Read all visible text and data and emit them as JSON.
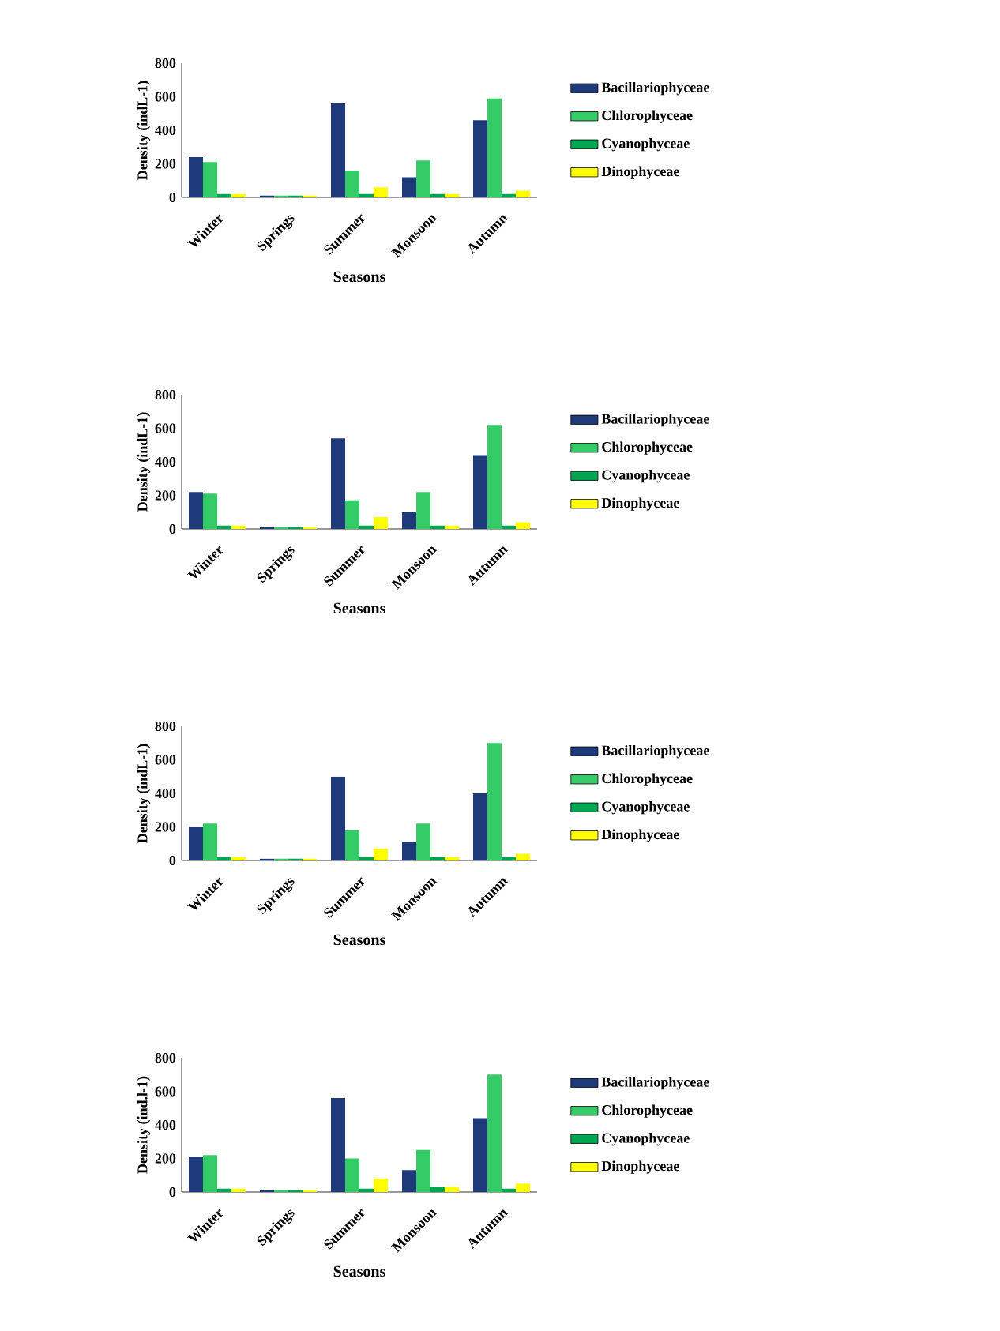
{
  "chart_data": [
    {
      "type": "bar",
      "categories": [
        "Winter",
        "Springs",
        "Summer",
        "Monsoon",
        "Autumn"
      ],
      "xlabel": "Seasons",
      "ylabel": "Density (indL-1)",
      "ylim": [
        0,
        800
      ],
      "yticks": [
        0,
        200,
        400,
        600,
        800
      ],
      "legend": "right",
      "series": [
        {
          "name": "Bacillariophyceae",
          "color": "#1f3a7a",
          "values": [
            240,
            10,
            560,
            120,
            460
          ]
        },
        {
          "name": "Chlorophyceae",
          "color": "#33cc66",
          "values": [
            210,
            10,
            160,
            220,
            590
          ]
        },
        {
          "name": "Cyanophyceae",
          "color": "#00a651",
          "values": [
            20,
            10,
            20,
            20,
            20
          ]
        },
        {
          "name": "Dinophyceae",
          "color": "#ffff00",
          "values": [
            20,
            10,
            60,
            20,
            40
          ]
        }
      ]
    },
    {
      "type": "bar",
      "categories": [
        "Winter",
        "Springs",
        "Summer",
        "Monsoon",
        "Autumn"
      ],
      "xlabel": "Seasons",
      "ylabel": "Density (indL-1)",
      "ylim": [
        0,
        800
      ],
      "yticks": [
        0,
        200,
        400,
        600,
        800
      ],
      "legend": "right",
      "series": [
        {
          "name": "Bacillariophyceae",
          "color": "#1f3a7a",
          "values": [
            220,
            10,
            540,
            100,
            440
          ]
        },
        {
          "name": "Chlorophyceae",
          "color": "#33cc66",
          "values": [
            210,
            10,
            170,
            220,
            620
          ]
        },
        {
          "name": "Cyanophyceae",
          "color": "#00a651",
          "values": [
            20,
            10,
            20,
            20,
            20
          ]
        },
        {
          "name": "Dinophyceae",
          "color": "#ffff00",
          "values": [
            20,
            10,
            70,
            20,
            40
          ]
        }
      ]
    },
    {
      "type": "bar",
      "categories": [
        "Winter",
        "Springs",
        "Summer",
        "Monsoon",
        "Autumn"
      ],
      "xlabel": "Seasons",
      "ylabel": "Density (indL-1)",
      "ylim": [
        0,
        800
      ],
      "yticks": [
        0,
        200,
        400,
        600,
        800
      ],
      "legend": "right",
      "series": [
        {
          "name": "Bacillariophyceae",
          "color": "#1f3a7a",
          "values": [
            200,
            10,
            500,
            110,
            400
          ]
        },
        {
          "name": "Chlorophyceae",
          "color": "#33cc66",
          "values": [
            220,
            10,
            180,
            220,
            700
          ]
        },
        {
          "name": "Cyanophyceae",
          "color": "#00a651",
          "values": [
            20,
            10,
            20,
            20,
            20
          ]
        },
        {
          "name": "Dinophyceae",
          "color": "#ffff00",
          "values": [
            20,
            10,
            70,
            20,
            40
          ]
        }
      ]
    },
    {
      "type": "bar",
      "categories": [
        "Winter",
        "Springs",
        "Summer",
        "Monsoon",
        "Autumn"
      ],
      "xlabel": "Seasons",
      "ylabel": "Density (ind.l-1)",
      "ylim": [
        0,
        800
      ],
      "yticks": [
        0,
        200,
        400,
        600,
        800
      ],
      "legend": "right",
      "series": [
        {
          "name": "Bacillariophyceae",
          "color": "#1f3a7a",
          "values": [
            210,
            10,
            560,
            130,
            440
          ]
        },
        {
          "name": "Chlorophyceae",
          "color": "#33cc66",
          "values": [
            220,
            10,
            200,
            250,
            700
          ]
        },
        {
          "name": "Cyanophyceae",
          "color": "#00a651",
          "values": [
            20,
            10,
            20,
            30,
            20
          ]
        },
        {
          "name": "Dinophyceae",
          "color": "#ffff00",
          "values": [
            20,
            10,
            80,
            30,
            50
          ]
        }
      ]
    }
  ]
}
